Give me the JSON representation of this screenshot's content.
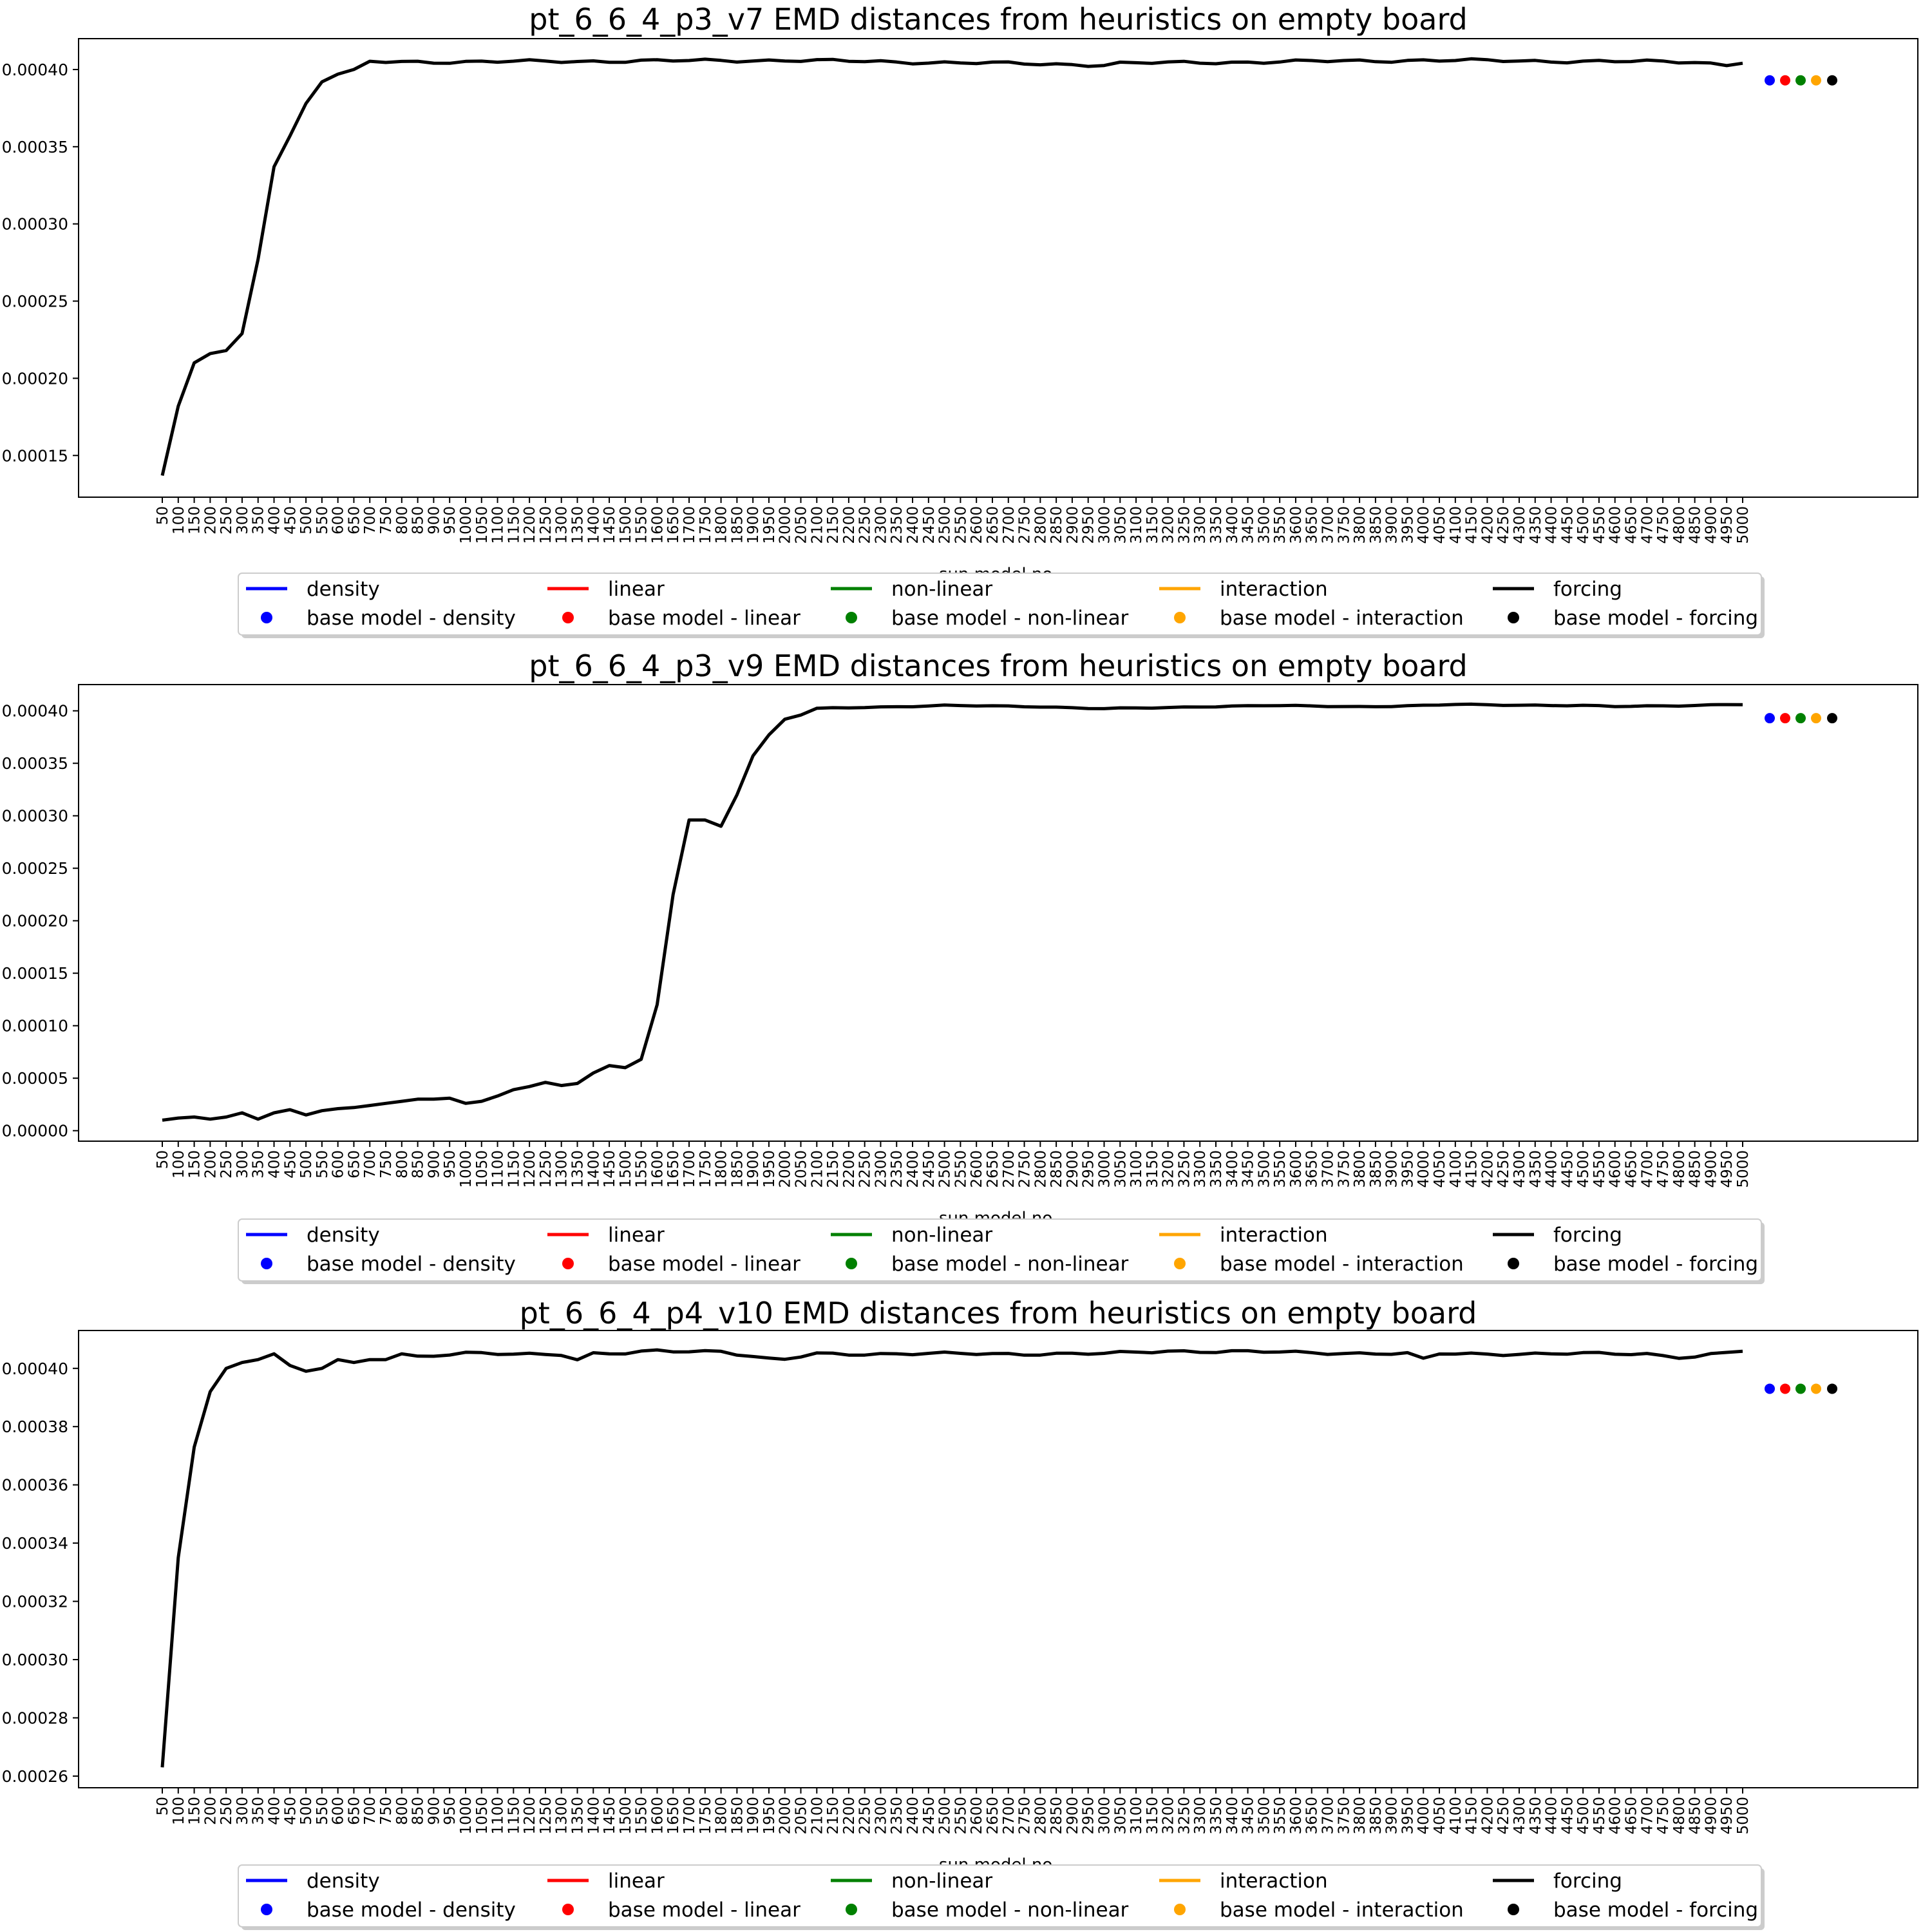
{
  "chart_data": [
    {
      "type": "line",
      "title": "pt_6_6_4_p3_v7 EMD distances from heuristics on empty board",
      "xlabel": "sun model no.",
      "ylabel": "",
      "ylim": [
        0.000123,
        0.00042
      ],
      "yticks": [
        0.00015,
        0.0002,
        0.00025,
        0.0003,
        0.00035,
        0.0004
      ],
      "ytick_labels": [
        "0.00015",
        "0.00020",
        "0.00025",
        "0.00030",
        "0.00035",
        "0.00040"
      ],
      "x_start": 50,
      "x_step": 50,
      "x_end": 5000,
      "key_points": [
        [
          50,
          0.000137
        ],
        [
          100,
          0.000182
        ],
        [
          150,
          0.00021
        ],
        [
          200,
          0.000216
        ],
        [
          250,
          0.000218
        ],
        [
          300,
          0.000229
        ],
        [
          350,
          0.000277
        ],
        [
          400,
          0.000337
        ],
        [
          450,
          0.000357
        ],
        [
          500,
          0.000378
        ],
        [
          550,
          0.000392
        ],
        [
          600,
          0.000397
        ],
        [
          650,
          0.0004
        ],
        [
          700,
          0.000405
        ],
        [
          1000,
          0.000405
        ],
        [
          2000,
          0.000406
        ],
        [
          3000,
          0.000403
        ],
        [
          3050,
          0.000404
        ],
        [
          4000,
          0.000406
        ],
        [
          4750,
          0.000405
        ],
        [
          4850,
          0.000405
        ],
        [
          4950,
          0.000403
        ],
        [
          5000,
          0.000405
        ]
      ],
      "ripple": 1.2e-06,
      "ripple_start": 700,
      "base_points": [
        {
          "name": "base model - density",
          "value": 0.000393,
          "color": "#0000ff"
        },
        {
          "name": "base model - linear",
          "value": 0.000393,
          "color": "#ff0000"
        },
        {
          "name": "base model - non-linear",
          "value": 0.000393,
          "color": "#008000"
        },
        {
          "name": "base model - interaction",
          "value": 0.000393,
          "color": "#ffa500"
        },
        {
          "name": "base model - forcing",
          "value": 0.000393,
          "color": "#000000"
        }
      ]
    },
    {
      "type": "line",
      "title": "pt_6_6_4_p3_v9 EMD distances from heuristics on empty board",
      "xlabel": "sun model no.",
      "ylabel": "",
      "ylim": [
        -1e-05,
        0.000425
      ],
      "yticks": [
        0.0,
        5e-05,
        0.0001,
        0.00015,
        0.0002,
        0.00025,
        0.0003,
        0.00035,
        0.0004
      ],
      "ytick_labels": [
        "0.00000",
        "0.00005",
        "0.00010",
        "0.00015",
        "0.00020",
        "0.00025",
        "0.00030",
        "0.00035",
        "0.00040"
      ],
      "x_start": 50,
      "x_step": 50,
      "x_end": 5000,
      "key_points": [
        [
          50,
          1e-05
        ],
        [
          100,
          1.2e-05
        ],
        [
          150,
          1.3e-05
        ],
        [
          200,
          1.1e-05
        ],
        [
          250,
          1.3e-05
        ],
        [
          300,
          1.7e-05
        ],
        [
          350,
          1.1e-05
        ],
        [
          400,
          1.7e-05
        ],
        [
          450,
          2e-05
        ],
        [
          500,
          1.5e-05
        ],
        [
          550,
          1.9e-05
        ],
        [
          600,
          2.1e-05
        ],
        [
          650,
          2.2e-05
        ],
        [
          700,
          2.4e-05
        ],
        [
          750,
          2.6e-05
        ],
        [
          800,
          2.8e-05
        ],
        [
          850,
          3e-05
        ],
        [
          900,
          3e-05
        ],
        [
          950,
          3.1e-05
        ],
        [
          1000,
          2.6e-05
        ],
        [
          1050,
          2.8e-05
        ],
        [
          1100,
          3.3e-05
        ],
        [
          1150,
          3.9e-05
        ],
        [
          1200,
          4.2e-05
        ],
        [
          1250,
          4.6e-05
        ],
        [
          1300,
          4.3e-05
        ],
        [
          1350,
          4.5e-05
        ],
        [
          1400,
          5.5e-05
        ],
        [
          1450,
          6.2e-05
        ],
        [
          1500,
          6e-05
        ],
        [
          1550,
          6.8e-05
        ],
        [
          1600,
          0.00012
        ],
        [
          1650,
          0.000225
        ],
        [
          1700,
          0.000296
        ],
        [
          1750,
          0.000296
        ],
        [
          1800,
          0.00029
        ],
        [
          1850,
          0.00032
        ],
        [
          1900,
          0.000357
        ],
        [
          1950,
          0.000377
        ],
        [
          2000,
          0.000392
        ],
        [
          2050,
          0.000396
        ],
        [
          2100,
          0.000402
        ],
        [
          2200,
          0.000403
        ],
        [
          2500,
          0.000405
        ],
        [
          2800,
          0.000404
        ],
        [
          3000,
          0.000402
        ],
        [
          3200,
          0.000403
        ],
        [
          3300,
          0.000404
        ],
        [
          3500,
          0.000405
        ],
        [
          3800,
          0.000404
        ],
        [
          4000,
          0.000405
        ],
        [
          4100,
          0.000406
        ],
        [
          4500,
          0.000405
        ],
        [
          4600,
          0.000404
        ],
        [
          4800,
          0.000405
        ],
        [
          4950,
          0.000406
        ],
        [
          5000,
          0.000406
        ]
      ],
      "ripple": 6e-07,
      "ripple_start": 2100,
      "base_points": [
        {
          "name": "base model - density",
          "value": 0.000393,
          "color": "#0000ff"
        },
        {
          "name": "base model - linear",
          "value": 0.000393,
          "color": "#ff0000"
        },
        {
          "name": "base model - non-linear",
          "value": 0.000393,
          "color": "#008000"
        },
        {
          "name": "base model - interaction",
          "value": 0.000393,
          "color": "#ffa500"
        },
        {
          "name": "base model - forcing",
          "value": 0.000393,
          "color": "#000000"
        }
      ]
    },
    {
      "type": "line",
      "title": "pt_6_6_4_p4_v10 EMD distances from heuristics on empty board",
      "xlabel": "sun model no.",
      "ylabel": "",
      "ylim": [
        0.000256,
        0.000413
      ],
      "yticks": [
        0.00026,
        0.00028,
        0.0003,
        0.00032,
        0.00034,
        0.00036,
        0.00038,
        0.0004
      ],
      "ytick_labels": [
        "0.00026",
        "0.00028",
        "0.00030",
        "0.00032",
        "0.00034",
        "0.00036",
        "0.00038",
        "0.00040"
      ],
      "x_start": 50,
      "x_step": 50,
      "x_end": 5000,
      "key_points": [
        [
          50,
          0.000263
        ],
        [
          100,
          0.000335
        ],
        [
          150,
          0.000373
        ],
        [
          200,
          0.000392
        ],
        [
          250,
          0.0004
        ],
        [
          300,
          0.000402
        ],
        [
          350,
          0.000403
        ],
        [
          400,
          0.000405
        ],
        [
          450,
          0.000401
        ],
        [
          500,
          0.000399
        ],
        [
          550,
          0.0004
        ],
        [
          600,
          0.000403
        ],
        [
          650,
          0.000402
        ],
        [
          700,
          0.000403
        ],
        [
          750,
          0.000403
        ],
        [
          800,
          0.000405
        ],
        [
          850,
          0.000404
        ],
        [
          1000,
          0.000405
        ],
        [
          1300,
          0.000405
        ],
        [
          1350,
          0.000403
        ],
        [
          1400,
          0.000405
        ],
        [
          1500,
          0.000405
        ],
        [
          1600,
          0.000406
        ],
        [
          1800,
          0.000406
        ],
        [
          1900,
          0.000404
        ],
        [
          1950,
          0.000403
        ],
        [
          2000,
          0.000403
        ],
        [
          2050,
          0.000404
        ],
        [
          2100,
          0.000405
        ],
        [
          2500,
          0.000405
        ],
        [
          3000,
          0.000405
        ],
        [
          3200,
          0.000406
        ],
        [
          3950,
          0.000405
        ],
        [
          4000,
          0.000403
        ],
        [
          4050,
          0.000405
        ],
        [
          4700,
          0.000405
        ],
        [
          4800,
          0.000404
        ],
        [
          4850,
          0.000404
        ],
        [
          5000,
          0.000406
        ]
      ],
      "ripple": 6e-07,
      "ripple_start": 850,
      "base_points": [
        {
          "name": "base model - density",
          "value": 0.000393,
          "color": "#0000ff"
        },
        {
          "name": "base model - linear",
          "value": 0.000393,
          "color": "#ff0000"
        },
        {
          "name": "base model - non-linear",
          "value": 0.000393,
          "color": "#008000"
        },
        {
          "name": "base model - interaction",
          "value": 0.000393,
          "color": "#ffa500"
        },
        {
          "name": "base model - forcing",
          "value": 0.000393,
          "color": "#000000"
        }
      ]
    }
  ],
  "legend": {
    "placement": "below",
    "entries": [
      {
        "label": "density",
        "kind": "line",
        "color": "#0000ff"
      },
      {
        "label": "base model - density",
        "kind": "dot",
        "color": "#0000ff"
      },
      {
        "label": "linear",
        "kind": "line",
        "color": "#ff0000"
      },
      {
        "label": "base model - linear",
        "kind": "dot",
        "color": "#ff0000"
      },
      {
        "label": "non-linear",
        "kind": "line",
        "color": "#008000"
      },
      {
        "label": "base model - non-linear",
        "kind": "dot",
        "color": "#008000"
      },
      {
        "label": "interaction",
        "kind": "line",
        "color": "#ffa500"
      },
      {
        "label": "base model - interaction",
        "kind": "dot",
        "color": "#ffa500"
      },
      {
        "label": "forcing",
        "kind": "line",
        "color": "#000000"
      },
      {
        "label": "base model - forcing",
        "kind": "dot",
        "color": "#000000"
      }
    ]
  }
}
